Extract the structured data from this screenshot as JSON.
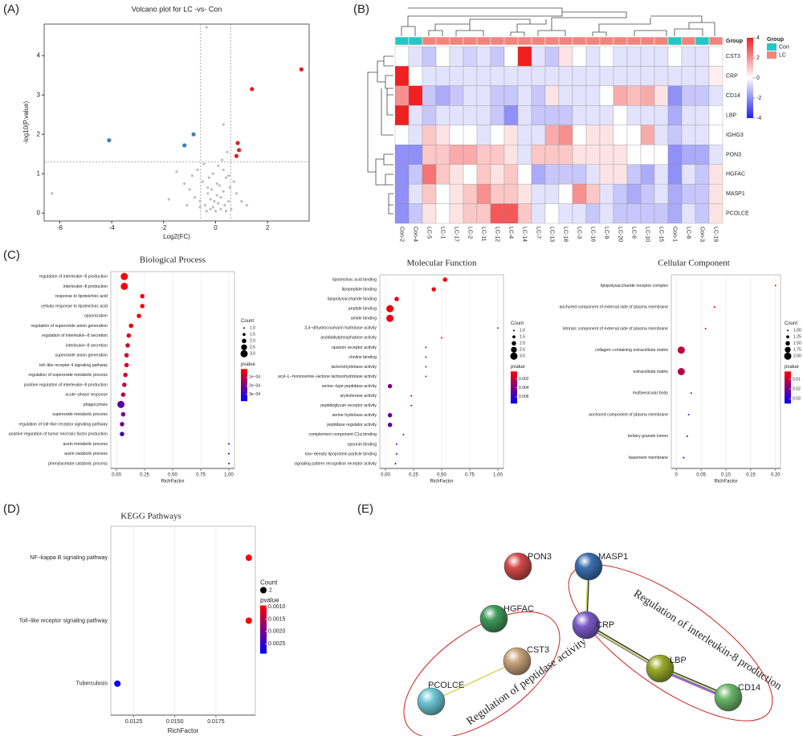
{
  "chart_data": [
    {
      "type": "scatter",
      "panel": "(A)",
      "title": "Volcano plot for LC -vs- Con",
      "x_label": "Log2(FC)",
      "y_label": "-log10(P.value)",
      "xlim": [
        -6.6,
        3.6
      ],
      "ylim": [
        -0.2,
        4.8
      ],
      "xticks": [
        -6,
        -4,
        -2,
        0,
        2
      ],
      "yticks": [
        0,
        1,
        2,
        3,
        4
      ],
      "thresholds": {
        "x": [
          -0.58,
          0.58
        ],
        "y": [
          1.3
        ]
      },
      "series": [
        {
          "color": "#bdbdbd",
          "x": [
            -6.3,
            -1.8,
            -1.5,
            -1.2,
            -1.0,
            -0.9,
            -0.7,
            -0.6,
            -0.5,
            -0.45,
            -0.4,
            -0.3,
            -0.25,
            -0.2,
            -0.15,
            -0.1,
            -0.05,
            0,
            0.05,
            0.1,
            0.15,
            0.2,
            0.25,
            0.3,
            0.35,
            0.4,
            0.45,
            0.5,
            0.55,
            0.6,
            0.7,
            0.8,
            1.0,
            1.2,
            -0.8,
            -0.6,
            -0.35,
            -0.1,
            0.05,
            0.2,
            0.3,
            0.5,
            -0.2,
            0.1,
            0.4,
            -1.1,
            0.3,
            -0.3,
            -0.35
          ],
          "values": [
            0.5,
            0.35,
            1.05,
            0.75,
            0.6,
            0.95,
            1.1,
            0.3,
            0.8,
            1.25,
            0.2,
            0.5,
            0.9,
            0.1,
            0.6,
            0.15,
            0.3,
            0.05,
            0.45,
            0.25,
            0.7,
            0.1,
            1.35,
            0.55,
            0.2,
            0.9,
            1.55,
            0.3,
            0.65,
            0.1,
            0.8,
            0.5,
            0.3,
            0.2,
            0.4,
            0.15,
            0.05,
            1.0,
            0.75,
            0.4,
            1.1,
            0.95,
            0.35,
            1.2,
            0.05,
            0.2,
            2.25,
            0.65,
            4.72
          ]
        },
        {
          "color": "#3b7fb5",
          "x": [
            -4.1,
            -0.85,
            -1.2
          ],
          "values": [
            1.85,
            2.0,
            1.72
          ]
        },
        {
          "color": "#e02020",
          "x": [
            3.3,
            1.4,
            0.85,
            0.9,
            0.8
          ],
          "values": [
            3.65,
            3.15,
            1.78,
            1.6,
            1.45
          ]
        }
      ]
    },
    {
      "type": "heatmap",
      "panel": "(B)",
      "columns": [
        "Con-2",
        "Con-4",
        "LC-5",
        "LC-1",
        "LC-17",
        "LC-2",
        "LC-11",
        "LC-12",
        "LC-4",
        "LC-14",
        "LC-7",
        "LC-13",
        "LC-18",
        "LC-3",
        "LC-16",
        "LC-9",
        "LC-20",
        "LC-6",
        "LC-10",
        "LC-15",
        "Con-1",
        "LC-8",
        "Con-3",
        "LC-19"
      ],
      "rows": [
        "CST3",
        "CRP",
        "CD14",
        "LBP",
        "IGHG3",
        "PON3",
        "HGFAC",
        "MASP1",
        "PCOLCE"
      ],
      "values": [
        [
          0,
          -0.5,
          -1,
          0,
          -0.5,
          -0.8,
          -0.5,
          -1,
          0,
          4,
          -0.5,
          -1,
          0.5,
          0,
          -0.5,
          0,
          -0.5,
          -0.5,
          -0.5,
          -0.5,
          0,
          -0.5,
          -0.5,
          0
        ],
        [
          4,
          0,
          -0.5,
          -0.5,
          -0.5,
          -0.5,
          -0.5,
          -0.5,
          -0.5,
          -0.5,
          -0.5,
          -0.5,
          -0.5,
          -0.5,
          -0.5,
          -0.5,
          -0.5,
          -0.5,
          -0.5,
          -0.5,
          -0.5,
          -0.5,
          -0.5,
          0.3
        ],
        [
          2,
          4,
          -1,
          -1.5,
          -1,
          -0.5,
          -0.5,
          -1,
          -1,
          -0.5,
          -1,
          0.5,
          -0.5,
          -0.5,
          -0.5,
          0,
          1.5,
          1.2,
          1.5,
          0.5,
          -2,
          -1,
          -1,
          -0.5
        ],
        [
          4,
          -0.5,
          -1,
          -0.5,
          -0.5,
          -0.5,
          -0.5,
          -1,
          -2,
          -0.5,
          -1,
          -1,
          -1,
          -0.5,
          -0.5,
          -0.5,
          0,
          -0.5,
          -0.5,
          -0.5,
          -1.5,
          -0.5,
          -0.5,
          0
        ],
        [
          0,
          -0.5,
          1,
          0.5,
          0,
          0,
          -0.5,
          0,
          0.5,
          -0.5,
          -0.5,
          1.5,
          2,
          0,
          0.5,
          0.5,
          0,
          0,
          1.5,
          -0.5,
          -1,
          -0.5,
          -0.5,
          0
        ],
        [
          -2,
          -2,
          1,
          1,
          1.5,
          1.5,
          1,
          1,
          0.5,
          -0.5,
          1,
          1,
          1,
          0.5,
          0.5,
          0.5,
          0.5,
          0,
          0,
          0,
          -2,
          -1.5,
          -1.5,
          -0.5
        ],
        [
          -2,
          -1,
          2.5,
          1,
          0.5,
          0,
          1,
          0.5,
          1,
          0,
          -1.5,
          -1,
          -1,
          -1,
          -0.5,
          0.5,
          0.5,
          -1,
          -1.5,
          -0.5,
          -2,
          -0.5,
          -1,
          0.5
        ],
        [
          -2,
          -0.5,
          1,
          0,
          0.5,
          1,
          2,
          1,
          1,
          0.5,
          -0.5,
          -0.5,
          0,
          2,
          1,
          -0.5,
          -1,
          -1.5,
          -1,
          -0.5,
          -1.5,
          -1,
          -1,
          0.5
        ],
        [
          -2,
          -1,
          0.5,
          0,
          0.5,
          1,
          1,
          3,
          3,
          1,
          -0.5,
          0,
          -0.5,
          -0.5,
          -1,
          -0.5,
          -1,
          -1,
          -1,
          -1,
          -1.5,
          -0.5,
          -1,
          0.5
        ]
      ],
      "groups": [
        "Con",
        "Con",
        "LC",
        "LC",
        "LC",
        "LC",
        "LC",
        "LC",
        "LC",
        "LC",
        "LC",
        "LC",
        "LC",
        "LC",
        "LC",
        "LC",
        "LC",
        "LC",
        "LC",
        "LC",
        "Con",
        "LC",
        "Con",
        "LC"
      ],
      "group_title": "Group",
      "group_levels": [
        {
          "name": "Con",
          "color": "#27c5c5"
        },
        {
          "name": "LC",
          "color": "#f0857d"
        }
      ],
      "clim": [
        -4,
        4
      ],
      "cticks": [
        4,
        2,
        0,
        -2,
        -4
      ],
      "colors": [
        "#2020f0",
        "#ffffff",
        "#f02020"
      ]
    },
    {
      "type": "dot",
      "panel": "(C)",
      "title": "Biological Process",
      "x_label": "RichFactor",
      "terms": [
        "regulation of interleukin−8 production",
        "interleukin−8 production",
        "response to lipoteichoic acid",
        "cellular response to lipoteichoic acid",
        "opsonization",
        "regulation of superoxide anion generation",
        "regulation of interleukin−8 secretion",
        "interleukin−8 secretion",
        "superoxide anion generation",
        "toll−like receptor 4 signaling pathway",
        "regulation of superoxide metabolic process",
        "positive regulation of interleukin−8 production",
        "acute−phase response",
        "phagocytosis",
        "superoxide metabolic process",
        "regulation of toll−like receptor signaling pathway",
        "positive regulation of tumor necrosis factor production",
        "auxin metabolic process",
        "auxin catabolic process",
        "phenylacetate catabolic process"
      ],
      "values": [
        0.07,
        0.07,
        0.23,
        0.23,
        0.2,
        0.13,
        0.11,
        0.1,
        0.09,
        0.09,
        0.08,
        0.07,
        0.06,
        0.04,
        0.06,
        0.05,
        0.05,
        1,
        1,
        1
      ],
      "counts": [
        3,
        3,
        2,
        2,
        2,
        2,
        2,
        2,
        2,
        2,
        2,
        2,
        2,
        3,
        2,
        2,
        2,
        1,
        1,
        1
      ],
      "pvalues": [
        1e-05,
        1e-05,
        2e-05,
        2e-05,
        2e-05,
        4e-05,
        5e-05,
        5e-05,
        6e-05,
        6e-05,
        7e-05,
        8e-05,
        9e-05,
        0.00025,
        0.0002,
        0.00022,
        0.0003,
        0.00037,
        0.00037,
        0.00037
      ],
      "xlim": [
        -0.05,
        1.05
      ],
      "xticks": [
        {
          "value": 0,
          "label": "0.00"
        },
        0.25,
        {
          "value": 0.5,
          "label": "0.50"
        },
        0.75,
        {
          "value": 1,
          "label": "1.00"
        }
      ],
      "grid": true,
      "size_title": "Count",
      "size_ticks": [
        {
          "value": 1,
          "label": "1.0"
        },
        1.5,
        {
          "value": 2,
          "label": "2.0"
        },
        2.5,
        {
          "value": 3,
          "label": "3.0"
        }
      ],
      "color_title": "pvalue",
      "clim": [
        5e-06,
        0.00038
      ],
      "cticks": [
        {
          "value": 0.0001,
          "label": "1e−04"
        },
        {
          "value": 0.0002,
          "label": "2e−04"
        },
        {
          "value": 0.0003,
          "label": "3e−04"
        }
      ]
    },
    {
      "type": "dot",
      "title": "Molecular Function",
      "x_label": "RichFactor",
      "terms": [
        "lipoteichoic acid binding",
        "lipopeptide binding",
        "lipopolysaccharide binding",
        "peptide binding",
        "amide binding",
        "3,4−dihydrocoumarin hydrolase activity",
        "aryldialkylphosphatase activity",
        "opsonin receptor activity",
        "choline binding",
        "lactonohydrolase activity",
        "acyl−L−homoserine−lactone lactonohydrolase activity",
        "serine−type peptidase activity",
        "arylesterase activity",
        "peptidoglycan receptor activity",
        "serine hydrolase activity",
        "peptidase regulator activity",
        "complement component C1q binding",
        "opsonin binding",
        "low−density lipoprotein particle binding",
        "signaling pattern recognition receptor activity"
      ],
      "values": [
        0.53,
        0.43,
        0.1,
        0.04,
        0.04,
        1,
        0.5,
        0.36,
        0.36,
        0.36,
        0.36,
        0.04,
        0.23,
        0.23,
        0.04,
        0.04,
        0.16,
        0.1,
        0.1,
        0.09
      ],
      "counts": [
        2,
        2,
        2,
        3,
        3,
        1,
        1,
        1,
        1,
        1,
        1,
        2,
        1,
        1,
        2,
        2,
        1,
        1,
        1,
        1
      ],
      "pvalues": [
        0.0004,
        0.0005,
        0.0008,
        0.0006,
        0.0006,
        0.001,
        0.0015,
        0.002,
        0.002,
        0.002,
        0.002,
        0.004,
        0.003,
        0.003,
        0.0045,
        0.005,
        0.004,
        0.0055,
        0.006,
        0.007
      ],
      "xlim": [
        -0.05,
        1.05
      ],
      "xticks": [
        {
          "value": 0,
          "label": "0.00"
        },
        0.25,
        {
          "value": 0.5,
          "label": "0.50"
        },
        0.75,
        {
          "value": 1,
          "label": "1.00"
        }
      ],
      "grid": true,
      "size_title": "Count",
      "size_ticks": [
        {
          "value": 1,
          "label": "1.0"
        },
        1.5,
        {
          "value": 2,
          "label": "2.0"
        },
        2.5,
        {
          "value": 3,
          "label": "3.0"
        }
      ],
      "color_title": "pvalue",
      "clim": [
        0.0003,
        0.0075
      ],
      "cticks": [
        0.002,
        0.004,
        0.006
      ]
    },
    {
      "type": "dot",
      "title": "Cellular Component",
      "x_label": "RichFactor",
      "terms": [
        "lipopolysaccharide receptor complex",
        "anchored component of external side of plasma membrane",
        "intrinsic component of external side of plasma membrane",
        "collagen−containing extracellular matrix",
        "extracellular matrix",
        "multivesicular body",
        "anchored component of plasma membrane",
        "tertiary granule lumen",
        "basement membrane"
      ],
      "values": [
        0.2,
        0.077,
        0.059,
        0.01,
        0.01,
        0.03,
        0.025,
        0.022,
        0.015
      ],
      "counts": [
        1,
        1,
        1,
        2,
        2,
        1,
        1,
        1,
        1
      ],
      "pvalues": [
        0.003,
        0.005,
        0.006,
        0.01,
        0.011,
        0.02,
        0.022,
        0.024,
        0.032
      ],
      "xlim": [
        -0.01,
        0.21
      ],
      "xticks": [
        0,
        0.05,
        {
          "value": 0.1,
          "label": "0.10"
        },
        0.15,
        {
          "value": 0.2,
          "label": "0.20"
        }
      ],
      "grid": true,
      "size_title": "Count",
      "size_ticks": [
        {
          "value": 1,
          "label": "1.00"
        },
        1.25,
        {
          "value": 1.5,
          "label": "1.50"
        },
        1.75,
        {
          "value": 2,
          "label": "2.00"
        }
      ],
      "color_title": "pvalue",
      "clim": [
        0.002,
        0.035
      ],
      "cticks": [
        0.01,
        0.02,
        0.03
      ]
    },
    {
      "type": "dot",
      "panel": "(D)",
      "title": "KEGG Pathways",
      "x_label": "RichFactor",
      "terms": [
        "NF−kappa B signaling pathway",
        "Toll−like receptor signaling pathway",
        "Tuberculosis"
      ],
      "values": [
        0.0195,
        0.0195,
        0.0115
      ],
      "counts": [
        2,
        2,
        2
      ],
      "pvalues": [
        0.001,
        0.001,
        0.0028
      ],
      "xlim": [
        0.0111,
        0.0199
      ],
      "xticks": [
        0.0125,
        {
          "value": 0.015,
          "label": "0.0150"
        },
        0.0175
      ],
      "grid": true,
      "size_title": "Count",
      "size_ticks": [
        2
      ],
      "color_title": "pvalue",
      "clim": [
        0.00095,
        0.0029
      ],
      "cticks": [
        {
          "value": 0.001,
          "label": "0.0010"
        },
        0.0015,
        {
          "value": 0.002,
          "label": "0.0020"
        },
        0.0025
      ]
    }
  ],
  "network": {
    "panel": "(E)",
    "nodes": [
      {
        "label": "MASP1"
      },
      {
        "label": "PON3"
      },
      {
        "label": "HGFAC"
      },
      {
        "label": "CRP"
      },
      {
        "label": "CST3"
      },
      {
        "label": "LBP"
      },
      {
        "label": "PCOLCE"
      },
      {
        "label": "CD14"
      }
    ],
    "annotations": [
      "Regulation of interleukin-8 production",
      "Regulation of peptidase activity"
    ]
  }
}
